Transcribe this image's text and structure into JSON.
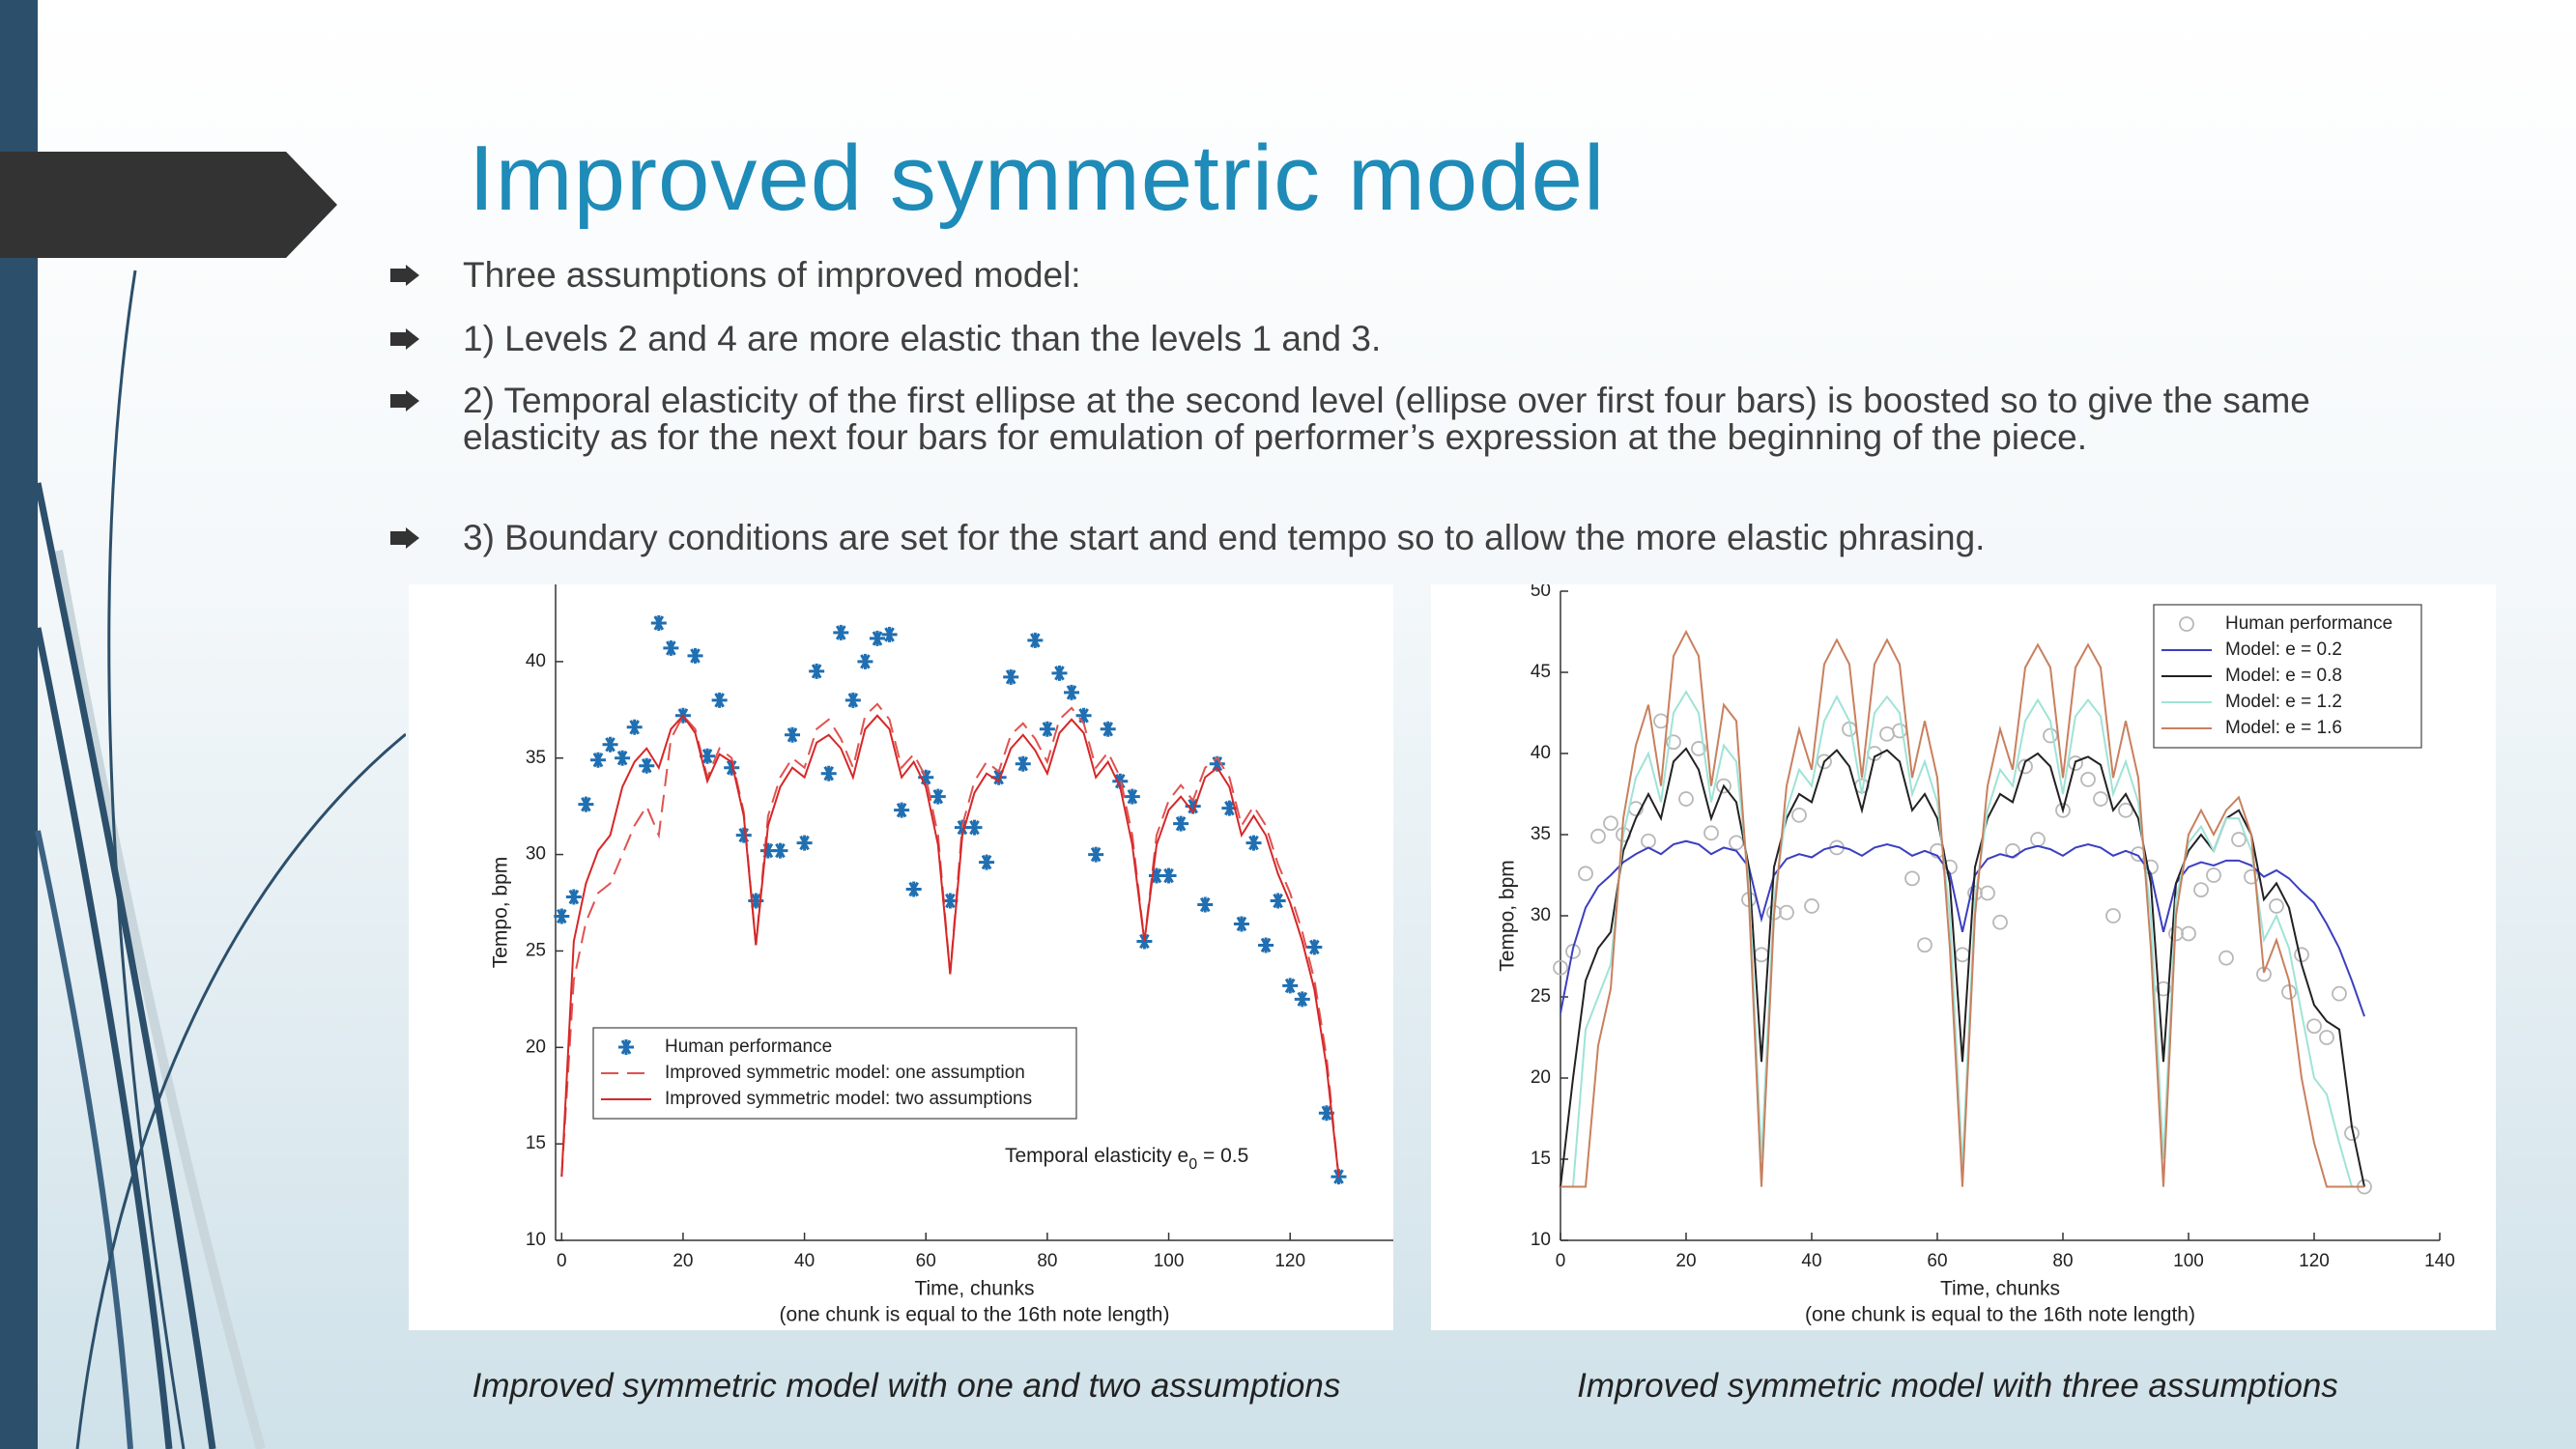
{
  "title": "Improved symmetric model",
  "bullets": [
    "Three assumptions of improved model:",
    "1) Levels 2 and 4 are more elastic than the levels 1 and 3.",
    "2) Temporal elasticity of the first ellipse at the second level (ellipse over first four bars) is boosted so to give the same elasticity as for the next four bars for emulation of performer’s expression at the beginning of the piece.",
    "3) Boundary conditions are set for the start and end tempo so to allow the more elastic phrasing."
  ],
  "captions": [
    "Improved symmetric model with one and two assumptions",
    "Improved symmetric model with three assumptions"
  ],
  "chart_data": [
    {
      "type": "line",
      "xlabel": [
        "Time, chunks",
        "(one chunk is equal to the 16th note length)"
      ],
      "ylabel": "Tempo, bpm",
      "annotation": [
        "Temporal elasticity e",
        "0",
        " = 0.5"
      ],
      "xlim": [
        -1,
        137
      ],
      "ylim": [
        10,
        44
      ],
      "xticks": [
        0,
        20,
        40,
        60,
        80,
        100,
        120
      ],
      "yticks": [
        10,
        15,
        20,
        25,
        30,
        35,
        40
      ],
      "legend": "lower left",
      "x": [
        0,
        2,
        4,
        6,
        8,
        10,
        12,
        14,
        16,
        18,
        20,
        22,
        24,
        26,
        28,
        30,
        32,
        34,
        36,
        38,
        40,
        42,
        44,
        46,
        48,
        50,
        52,
        54,
        56,
        58,
        60,
        62,
        64,
        66,
        68,
        70,
        72,
        74,
        76,
        78,
        80,
        82,
        84,
        86,
        88,
        90,
        92,
        94,
        96,
        98,
        100,
        102,
        104,
        106,
        108,
        110,
        112,
        114,
        116,
        118,
        120,
        122,
        124,
        126,
        128
      ],
      "series": [
        {
          "name": "Human performance",
          "color": "#1f6fb2",
          "marker": "asterisk",
          "linestyle": "none",
          "values": [
            26.8,
            27.8,
            32.6,
            34.9,
            35.7,
            35.0,
            36.6,
            34.6,
            42.0,
            40.7,
            37.2,
            40.3,
            35.1,
            38.0,
            34.5,
            31.0,
            27.6,
            30.2,
            30.2,
            36.2,
            30.6,
            39.5,
            34.2,
            41.5,
            38.0,
            40.0,
            41.2,
            41.4,
            32.3,
            28.2,
            34.0,
            33.0,
            27.6,
            31.4,
            31.4,
            29.6,
            34.0,
            39.2,
            34.7,
            41.1,
            36.5,
            39.4,
            38.4,
            37.2,
            30.0,
            36.5,
            33.8,
            33.0,
            25.5,
            28.9,
            28.9,
            31.6,
            32.5,
            27.4,
            34.7,
            32.4,
            26.4,
            30.6,
            25.3,
            27.6,
            23.2,
            22.5,
            25.2,
            16.6,
            13.3
          ]
        },
        {
          "name": "Improved symmetric model: one assumption",
          "color": "#e0524f",
          "marker": "none",
          "linestyle": "dashed",
          "values": [
            13.3,
            23.5,
            26.5,
            28,
            28.5,
            30,
            31.5,
            32.5,
            31,
            36,
            37.2,
            36.5,
            34,
            35.5,
            35,
            32.2,
            25.3,
            32,
            34,
            35,
            34.5,
            36.5,
            37,
            36,
            34.5,
            37.2,
            37.8,
            37,
            34.5,
            35.2,
            34,
            31,
            23.8,
            31.5,
            33.8,
            34.8,
            34.3,
            36.2,
            36.8,
            36,
            34.8,
            37,
            37.6,
            36.8,
            34.5,
            35.3,
            34,
            31,
            25.5,
            31,
            32.8,
            33.6,
            32.8,
            34.5,
            35,
            34,
            31.5,
            32.5,
            31.5,
            29.5,
            28,
            26,
            23.5,
            19.5,
            13.3
          ]
        },
        {
          "name": "Improved symmetric model: two assumptions",
          "color": "#d62728",
          "marker": "none",
          "linestyle": "solid",
          "values": [
            13.3,
            25.5,
            28.5,
            30.2,
            31.0,
            33.5,
            34.8,
            35.5,
            34.5,
            36.5,
            37.2,
            36.3,
            33.8,
            35.2,
            34.8,
            32.0,
            25.3,
            31.5,
            33.5,
            34.5,
            34.0,
            35.8,
            36.2,
            35.5,
            34.0,
            36.5,
            37.2,
            36.5,
            34.0,
            34.8,
            33.5,
            30.5,
            23.8,
            31,
            33.2,
            34.2,
            33.8,
            35.5,
            36.2,
            35.4,
            34.2,
            36.3,
            37.0,
            36.3,
            34.0,
            34.8,
            33.5,
            30.5,
            25.5,
            30.5,
            32.3,
            33.0,
            32.2,
            34.0,
            34.5,
            33.5,
            31.0,
            32.0,
            31.0,
            29.0,
            27.5,
            25.5,
            23.0,
            19.0,
            13.3
          ]
        }
      ]
    },
    {
      "type": "line",
      "xlabel": [
        "Time, chunks",
        "(one chunk is equal to the 16th note length)"
      ],
      "ylabel": "Tempo, bpm",
      "xlim": [
        0,
        140
      ],
      "ylim": [
        10,
        50
      ],
      "xticks": [
        0,
        20,
        40,
        60,
        80,
        100,
        120,
        140
      ],
      "yticks": [
        10,
        15,
        20,
        25,
        30,
        35,
        40,
        45,
        50
      ],
      "legend": "upper right",
      "x": [
        0,
        2,
        4,
        6,
        8,
        10,
        12,
        14,
        16,
        18,
        20,
        22,
        24,
        26,
        28,
        30,
        32,
        34,
        36,
        38,
        40,
        42,
        44,
        46,
        48,
        50,
        52,
        54,
        56,
        58,
        60,
        62,
        64,
        66,
        68,
        70,
        72,
        74,
        76,
        78,
        80,
        82,
        84,
        86,
        88,
        90,
        92,
        94,
        96,
        98,
        100,
        102,
        104,
        106,
        108,
        110,
        112,
        114,
        116,
        118,
        120,
        122,
        124,
        126,
        128
      ],
      "series": [
        {
          "name": "Human performance",
          "color": "#b8b8b8",
          "marker": "circle",
          "linestyle": "none",
          "values": [
            26.8,
            27.8,
            32.6,
            34.9,
            35.7,
            35.0,
            36.6,
            34.6,
            42.0,
            40.7,
            37.2,
            40.3,
            35.1,
            38.0,
            34.5,
            31.0,
            27.6,
            30.2,
            30.2,
            36.2,
            30.6,
            39.5,
            34.2,
            41.5,
            38.0,
            40.0,
            41.2,
            41.4,
            32.3,
            28.2,
            34.0,
            33.0,
            27.6,
            31.4,
            31.4,
            29.6,
            34.0,
            39.2,
            34.7,
            41.1,
            36.5,
            39.4,
            38.4,
            37.2,
            30.0,
            36.5,
            33.8,
            33.0,
            25.5,
            28.9,
            28.9,
            31.6,
            32.5,
            27.4,
            34.7,
            32.4,
            26.4,
            30.6,
            25.3,
            27.6,
            23.2,
            22.5,
            25.2,
            16.6,
            13.3
          ]
        },
        {
          "name": "Model: e = 0.2",
          "color": "#3b3fc0",
          "marker": "none",
          "linestyle": "solid",
          "values": [
            24,
            28,
            30.5,
            31.8,
            32.5,
            33.3,
            33.8,
            34.2,
            33.8,
            34.4,
            34.6,
            34.4,
            33.8,
            34.2,
            34.0,
            33.0,
            29.8,
            32.5,
            33.5,
            33.8,
            33.6,
            34.1,
            34.3,
            34.1,
            33.7,
            34.2,
            34.4,
            34.2,
            33.7,
            34.0,
            33.7,
            32.6,
            29.0,
            32.5,
            33.5,
            33.8,
            33.6,
            34.1,
            34.3,
            34.1,
            33.7,
            34.2,
            34.4,
            34.2,
            33.7,
            34.0,
            33.7,
            32.6,
            29.0,
            32,
            33,
            33.3,
            33.1,
            33.4,
            33.4,
            33.1,
            32.4,
            32.8,
            32.3,
            31.5,
            30.8,
            29.5,
            28,
            26,
            23.8
          ]
        },
        {
          "name": "Model: e = 0.8",
          "color": "#222222",
          "marker": "none",
          "linestyle": "solid",
          "values": [
            13.3,
            20,
            26,
            28,
            29,
            34,
            36,
            37.5,
            36,
            39.5,
            40.3,
            39,
            36,
            38,
            37,
            33,
            21,
            33,
            36,
            37.5,
            37,
            39.5,
            40.2,
            39.2,
            36.5,
            39.8,
            40.2,
            39.5,
            36.5,
            37.5,
            36,
            32,
            21,
            33,
            36,
            37.5,
            37,
            39.5,
            40,
            39.2,
            36.5,
            39.5,
            39.8,
            39.3,
            36.5,
            37.5,
            36,
            32,
            21,
            32,
            34,
            35,
            34,
            36,
            36.5,
            35,
            31,
            32,
            30.5,
            27,
            24.5,
            23.5,
            23,
            17,
            13.3
          ]
        },
        {
          "name": "Model: e = 1.2",
          "color": "#9fe3d6",
          "marker": "none",
          "linestyle": "solid",
          "values": [
            13.3,
            13.3,
            23,
            25,
            27,
            35,
            38.5,
            40,
            37,
            42.5,
            43.8,
            42.5,
            37,
            40.5,
            39.5,
            32,
            15,
            31,
            36.5,
            39,
            38,
            42,
            43.5,
            42,
            37.5,
            42.5,
            43.5,
            42.5,
            37.5,
            39.5,
            37,
            30,
            14.5,
            31,
            36.5,
            39,
            38,
            42,
            43.3,
            42,
            37.5,
            42.3,
            43.3,
            42.3,
            37.5,
            39.5,
            37,
            30,
            15,
            31,
            34.5,
            35.5,
            34,
            36,
            36,
            34,
            28.5,
            30,
            28,
            24,
            20,
            19,
            16,
            13.3,
            13.3
          ]
        },
        {
          "name": "Model: e = 1.6",
          "color": "#c8805f",
          "marker": "none",
          "linestyle": "solid",
          "values": [
            13.3,
            13.3,
            13.3,
            22,
            25.5,
            36,
            40.5,
            43,
            38,
            46,
            47.5,
            46,
            38,
            43,
            42,
            31,
            13.3,
            30,
            38,
            41.5,
            39,
            45.5,
            47,
            45.5,
            38.5,
            45.5,
            47,
            45.5,
            38.5,
            42,
            38.5,
            28,
            13.3,
            30,
            38,
            41.5,
            39,
            45.3,
            46.7,
            45.3,
            38.5,
            45.3,
            46.7,
            45.3,
            38.5,
            42,
            38.5,
            28,
            13.3,
            30,
            35,
            36.5,
            35,
            36.5,
            37.3,
            35,
            26.5,
            28.5,
            26,
            20,
            16,
            13.3,
            13.3,
            13.3,
            13.3
          ]
        }
      ]
    }
  ]
}
